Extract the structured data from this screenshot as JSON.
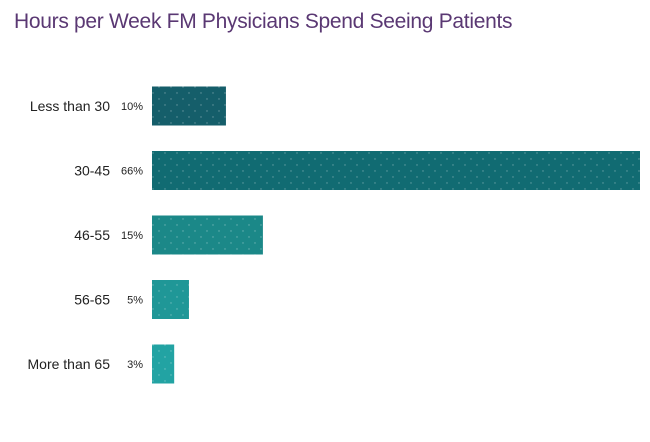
{
  "chart_data": {
    "type": "bar",
    "orientation": "horizontal",
    "title": "Hours per Week FM Physicians Spend Seeing Patients",
    "categories": [
      "Less than 30",
      "30-45",
      "46-55",
      "56-65",
      "More than 65"
    ],
    "values": [
      10,
      66,
      15,
      5,
      3
    ],
    "value_labels": [
      "10%",
      "66%",
      "15%",
      "5%",
      "3%"
    ],
    "unit": "%",
    "xlim": [
      0,
      66
    ],
    "colors": [
      "#155e6a",
      "#116b72",
      "#1b8888",
      "#1f9797",
      "#22a3a3"
    ],
    "grid": false,
    "legend": "none"
  }
}
